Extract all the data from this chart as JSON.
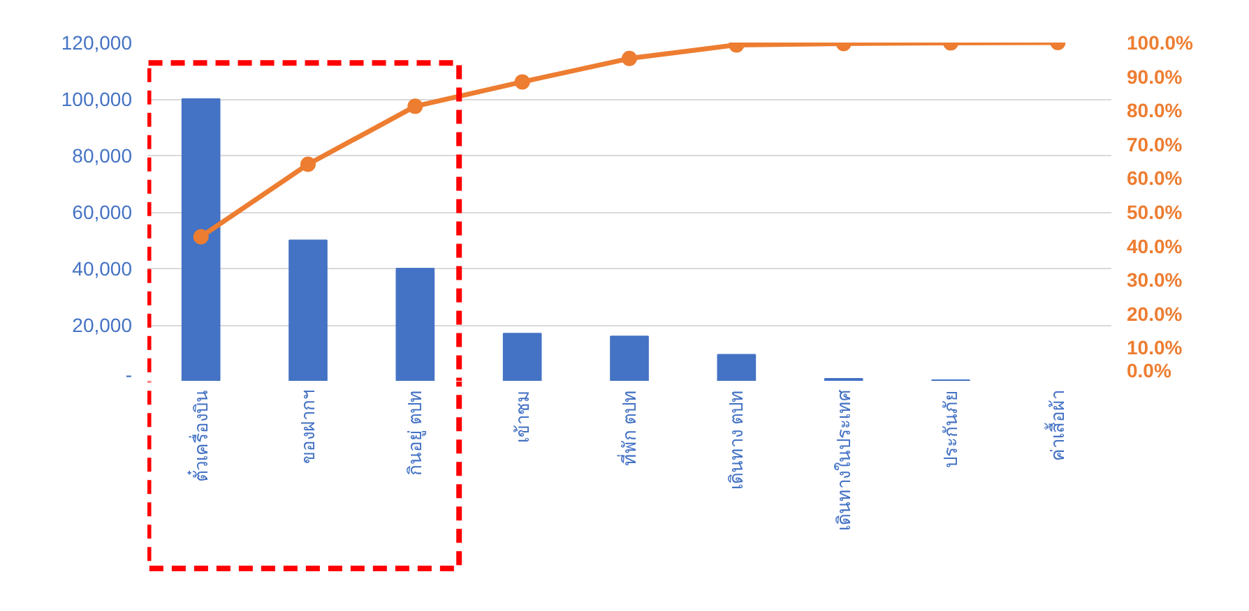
{
  "chart_data": {
    "type": "bar",
    "categories": [
      "ตั๋วเครื่องบิน",
      "ของฝากฯ",
      "กินอยู่ ตปท",
      "เข้าชม",
      "ที่พัก ตปท",
      "เดินทาง ตปท",
      "เดินทางในประเทศ",
      "ประกันภัย",
      "ค่าเสื้อผ้า"
    ],
    "series": [
      {
        "color": "#4472c4",
        "values": [
          100000,
          50000,
          40000,
          17000,
          16000,
          9500,
          1000,
          500,
          null
        ]
      },
      {
        "type": "line",
        "axis": "y2",
        "color": "#ed7d31",
        "marker": "circle",
        "values": [
          42.7,
          64.1,
          81.2,
          88.4,
          95.3,
          99.3,
          99.7,
          99.9,
          100.0
        ]
      }
    ],
    "ylim": [
      0,
      120000
    ],
    "yticks": [
      {
        "value": 0,
        "label": "-"
      },
      {
        "value": 20000,
        "label": "20,000"
      },
      {
        "value": 40000,
        "label": "40,000"
      },
      {
        "value": 60000,
        "label": "60,000"
      },
      {
        "value": 80000,
        "label": "80,000"
      },
      {
        "value": 100000,
        "label": "100,000"
      },
      {
        "value": 120000,
        "label": "120,000"
      }
    ],
    "y2lim": [
      0,
      100
    ],
    "y2ticks": [
      {
        "value": 0,
        "label": "0.0%"
      },
      {
        "value": 10,
        "label": "10.0%"
      },
      {
        "value": 20,
        "label": "20.0%"
      },
      {
        "value": 30,
        "label": "30.0%"
      },
      {
        "value": 40,
        "label": "40.0%"
      },
      {
        "value": 50,
        "label": "50.0%"
      },
      {
        "value": 60,
        "label": "60.0%"
      },
      {
        "value": 70,
        "label": "70.0%"
      },
      {
        "value": 80,
        "label": "80.0%"
      },
      {
        "value": 90,
        "label": "90.0%"
      },
      {
        "value": 100,
        "label": "100.0%"
      }
    ],
    "grid": "y"
  }
}
